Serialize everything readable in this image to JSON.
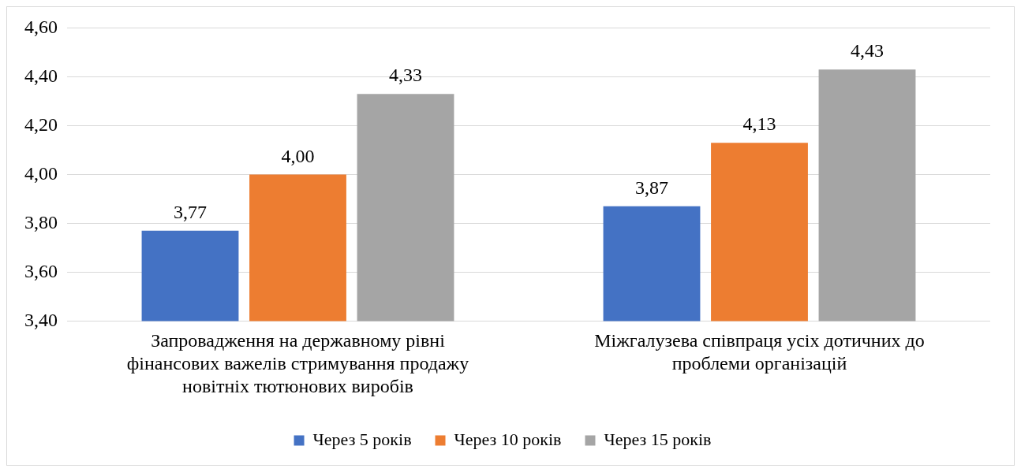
{
  "chart_data": {
    "type": "bar",
    "categories": [
      "Запровадження на державному рівні фінансових важелів стримування продажу новітніх тютюнових виробів",
      "Міжгалузева співпраця усіх дотичних до проблеми організацій"
    ],
    "series": [
      {
        "name": "Через 5 років",
        "color": "#4472c4",
        "values": [
          3.77,
          3.87
        ],
        "value_labels": [
          "3,77",
          "3,87"
        ]
      },
      {
        "name": "Через 10 років",
        "color": "#ed7d31",
        "values": [
          4.0,
          4.13
        ],
        "value_labels": [
          "4,00",
          "4,13"
        ]
      },
      {
        "name": "Через 15 років",
        "color": "#a5a5a5",
        "values": [
          4.33,
          4.43
        ],
        "value_labels": [
          "4,33",
          "4,43"
        ]
      }
    ],
    "ylim": [
      3.4,
      4.6
    ],
    "yticks": [
      {
        "value": 3.4,
        "label": "3,40"
      },
      {
        "value": 3.6,
        "label": "3,60"
      },
      {
        "value": 3.8,
        "label": "3,80"
      },
      {
        "value": 4.0,
        "label": "4,00"
      },
      {
        "value": 4.2,
        "label": "4,20"
      },
      {
        "value": 4.4,
        "label": "4,40"
      },
      {
        "value": 4.6,
        "label": "4,60"
      }
    ],
    "grid": "y",
    "legend": "bottom"
  }
}
